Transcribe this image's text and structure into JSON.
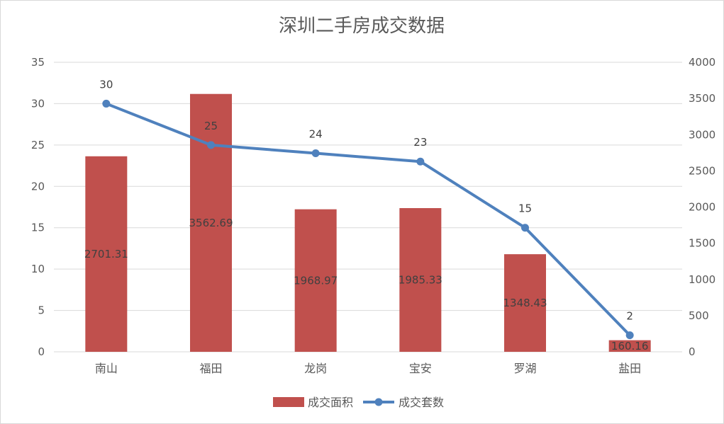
{
  "chart_data": {
    "type": "bar",
    "title": "深圳二手房成交数据",
    "categories": [
      "南山",
      "福田",
      "龙岗",
      "宝安",
      "罗湖",
      "盐田"
    ],
    "series": [
      {
        "name": "成交面积",
        "type": "bar",
        "axis": "right",
        "values": [
          2701.31,
          3562.69,
          1968.97,
          1985.33,
          1348.43,
          160.16
        ],
        "labels": [
          "2701.31",
          "3562.69",
          "1968.97",
          "1985.33",
          "1348.43",
          "160.16"
        ],
        "color": "#c0504d"
      },
      {
        "name": "成交套数",
        "type": "line",
        "axis": "left",
        "values": [
          30,
          25,
          24,
          23,
          15,
          2
        ],
        "labels": [
          "30",
          "25",
          "24",
          "23",
          "15",
          "2"
        ],
        "color": "#4f81bd"
      }
    ],
    "y_left": {
      "min": 0,
      "max": 35,
      "step": 5,
      "ticks": [
        "0",
        "5",
        "10",
        "15",
        "20",
        "25",
        "30",
        "35"
      ]
    },
    "y_right": {
      "min": 0,
      "max": 4000,
      "step": 500,
      "ticks": [
        "0",
        "500",
        "1000",
        "1500",
        "2000",
        "2500",
        "3000",
        "3500",
        "4000"
      ]
    },
    "grid": true,
    "legend": "bottom"
  }
}
